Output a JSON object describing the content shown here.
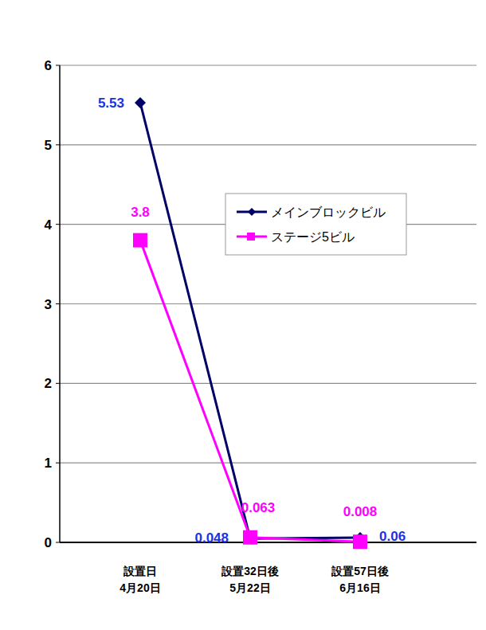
{
  "chart_data": {
    "type": "line",
    "categories": [
      "設置日\n4月20日",
      "設置32日後\n5月22日",
      "設置57日後\n6月16日"
    ],
    "series": [
      {
        "name": "メインブロックビル",
        "color": "#000066",
        "marker": "diamond",
        "line_style": "solid",
        "values": [
          5.53,
          0.048,
          0.06
        ]
      },
      {
        "name": "ステージ5ビル",
        "color": "#ff00ff",
        "marker": "square",
        "line_style": "solid",
        "values": [
          3.8,
          0.063,
          0.008
        ]
      }
    ],
    "ylim": [
      0,
      6
    ],
    "yticks": [
      0,
      1,
      2,
      3,
      4,
      5,
      6
    ],
    "grid": true,
    "legend": "upper right",
    "data_labels": true
  }
}
